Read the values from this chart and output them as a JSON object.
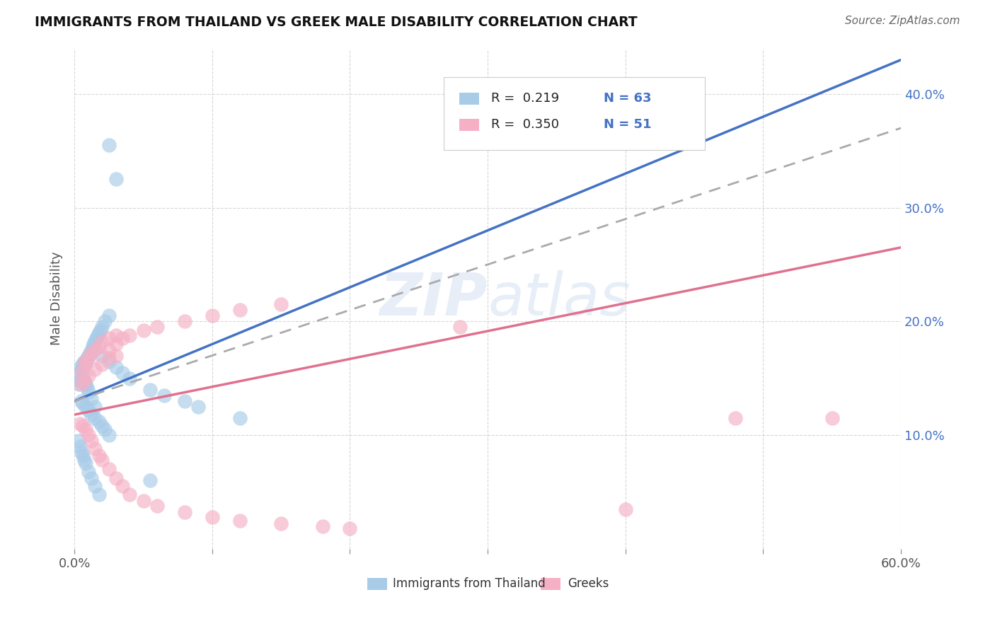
{
  "title": "IMMIGRANTS FROM THAILAND VS GREEK MALE DISABILITY CORRELATION CHART",
  "source": "Source: ZipAtlas.com",
  "ylabel": "Male Disability",
  "x_min": 0.0,
  "x_max": 0.6,
  "y_min": 0.0,
  "y_max": 0.44,
  "x_tick_vals": [
    0.0,
    0.1,
    0.2,
    0.3,
    0.4,
    0.5,
    0.6
  ],
  "x_tick_labels": [
    "0.0%",
    "",
    "",
    "",
    "",
    "",
    "60.0%"
  ],
  "y_tick_vals": [
    0.0,
    0.1,
    0.2,
    0.3,
    0.4
  ],
  "y_tick_labels_right": [
    "",
    "10.0%",
    "20.0%",
    "30.0%",
    "40.0%"
  ],
  "color_blue": "#a8cce8",
  "color_pink": "#f5b0c5",
  "color_blue_line": "#4472c4",
  "color_pink_line": "#e07090",
  "color_gray_dashed": "#aaaaaa",
  "watermark": "ZIPatlas",
  "legend_r1": "R =  0.219",
  "legend_n1": "N = 63",
  "legend_r2": "R =  0.350",
  "legend_n2": "N = 51",
  "legend_label1": "Immigrants from Thailand",
  "legend_label2": "Greeks",
  "thai_x": [
    0.003,
    0.004,
    0.005,
    0.006,
    0.007,
    0.008,
    0.009,
    0.01,
    0.011,
    0.012,
    0.013,
    0.014,
    0.015,
    0.016,
    0.017,
    0.018,
    0.019,
    0.02,
    0.022,
    0.025,
    0.005,
    0.006,
    0.008,
    0.01,
    0.012,
    0.015,
    0.018,
    0.02,
    0.022,
    0.025,
    0.003,
    0.004,
    0.005,
    0.006,
    0.007,
    0.008,
    0.01,
    0.012,
    0.015,
    0.018,
    0.003,
    0.004,
    0.005,
    0.006,
    0.007,
    0.008,
    0.009,
    0.01,
    0.012,
    0.015,
    0.02,
    0.025,
    0.03,
    0.035,
    0.04,
    0.055,
    0.065,
    0.08,
    0.09,
    0.12,
    0.025,
    0.03,
    0.055
  ],
  "thai_y": [
    0.155,
    0.16,
    0.158,
    0.163,
    0.165,
    0.162,
    0.168,
    0.17,
    0.172,
    0.175,
    0.178,
    0.18,
    0.183,
    0.185,
    0.188,
    0.19,
    0.192,
    0.195,
    0.2,
    0.205,
    0.13,
    0.128,
    0.125,
    0.122,
    0.118,
    0.115,
    0.112,
    0.108,
    0.105,
    0.1,
    0.095,
    0.09,
    0.085,
    0.082,
    0.078,
    0.075,
    0.068,
    0.062,
    0.055,
    0.048,
    0.145,
    0.148,
    0.15,
    0.152,
    0.148,
    0.145,
    0.142,
    0.138,
    0.132,
    0.125,
    0.17,
    0.165,
    0.16,
    0.155,
    0.15,
    0.14,
    0.135,
    0.13,
    0.125,
    0.115,
    0.355,
    0.325,
    0.06
  ],
  "greek_x": [
    0.005,
    0.007,
    0.008,
    0.01,
    0.012,
    0.015,
    0.018,
    0.02,
    0.025,
    0.03,
    0.004,
    0.006,
    0.008,
    0.01,
    0.012,
    0.015,
    0.018,
    0.02,
    0.025,
    0.03,
    0.035,
    0.04,
    0.05,
    0.06,
    0.08,
    0.1,
    0.12,
    0.15,
    0.18,
    0.2,
    0.025,
    0.03,
    0.035,
    0.04,
    0.05,
    0.06,
    0.08,
    0.1,
    0.12,
    0.15,
    0.005,
    0.007,
    0.01,
    0.015,
    0.02,
    0.025,
    0.03,
    0.28,
    0.4,
    0.48,
    0.55
  ],
  "greek_y": [
    0.155,
    0.162,
    0.165,
    0.168,
    0.172,
    0.175,
    0.178,
    0.182,
    0.185,
    0.188,
    0.11,
    0.108,
    0.105,
    0.1,
    0.095,
    0.088,
    0.082,
    0.078,
    0.07,
    0.062,
    0.055,
    0.048,
    0.042,
    0.038,
    0.032,
    0.028,
    0.025,
    0.022,
    0.02,
    0.018,
    0.175,
    0.18,
    0.185,
    0.188,
    0.192,
    0.195,
    0.2,
    0.205,
    0.21,
    0.215,
    0.145,
    0.148,
    0.152,
    0.158,
    0.162,
    0.168,
    0.17,
    0.195,
    0.035,
    0.115,
    0.115
  ]
}
